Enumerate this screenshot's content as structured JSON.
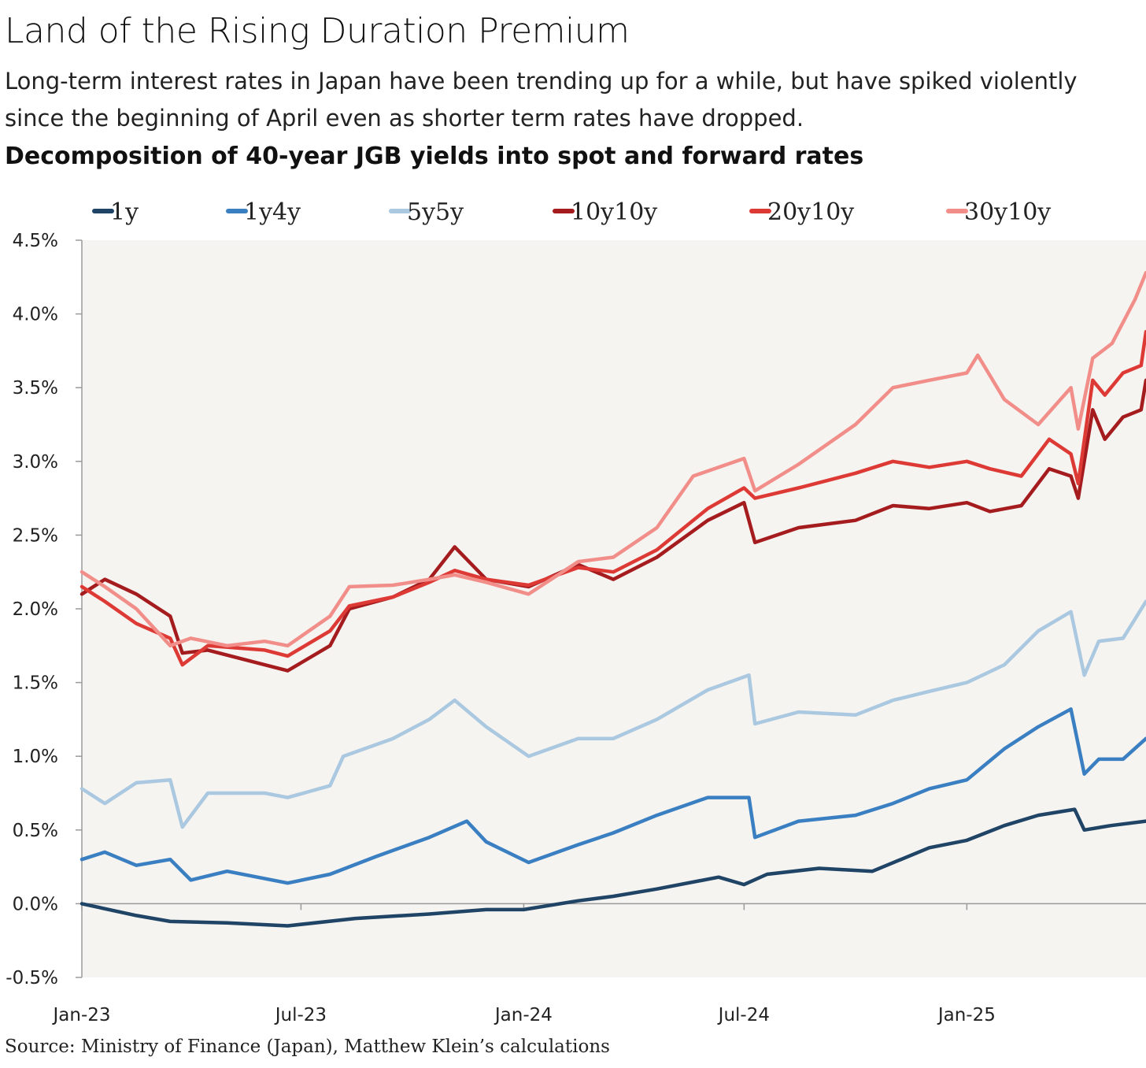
{
  "header": {
    "title": "Land of the Rising Duration Premium",
    "subtitle": "Long-term interest rates in Japan have been trending up for a while, but have spiked violently since the beginning of April even as shorter term rates have dropped.",
    "chart_title": "Decomposition of 40-year JGB yields into spot and forward rates"
  },
  "source": "Source: Ministry of Finance (Japan), Matthew Klein’s calculations",
  "chart_data": {
    "type": "line",
    "title": "Decomposition of 40-year JGB yields into spot and forward rates",
    "xlabel": "",
    "ylabel": "",
    "x_tick_labels": [
      "Jan-23",
      "Jul-23",
      "Jan-24",
      "Jul-24",
      "Jan-25"
    ],
    "x_tick_dates": [
      "2023-01-01",
      "2023-07-01",
      "2024-01-01",
      "2024-07-01",
      "2025-01-01"
    ],
    "xlim": [
      "2023-01-01",
      "2025-05-29"
    ],
    "y_tick_labels": [
      "-0.5%",
      "0.0%",
      "0.5%",
      "1.0%",
      "1.5%",
      "2.0%",
      "2.5%",
      "3.0%",
      "3.5%",
      "4.0%",
      "4.5%"
    ],
    "y_ticks": [
      -0.5,
      0.0,
      0.5,
      1.0,
      1.5,
      2.0,
      2.5,
      3.0,
      3.5,
      4.0,
      4.5
    ],
    "ylim": [
      -0.5,
      4.5
    ],
    "grid": false,
    "legend_position": "top",
    "series": [
      {
        "name": "1y",
        "color": "#1f4466",
        "points": [
          [
            "2023-01-01",
            0.0
          ],
          [
            "2023-02-15",
            -0.08
          ],
          [
            "2023-03-15",
            -0.12
          ],
          [
            "2023-05-01",
            -0.13
          ],
          [
            "2023-06-20",
            -0.15
          ],
          [
            "2023-08-15",
            -0.1
          ],
          [
            "2023-10-15",
            -0.07
          ],
          [
            "2023-12-01",
            -0.04
          ],
          [
            "2024-01-01",
            -0.04
          ],
          [
            "2024-02-15",
            0.02
          ],
          [
            "2024-03-15",
            0.05
          ],
          [
            "2024-04-20",
            0.1
          ],
          [
            "2024-06-10",
            0.18
          ],
          [
            "2024-07-01",
            0.13
          ],
          [
            "2024-07-20",
            0.2
          ],
          [
            "2024-09-01",
            0.24
          ],
          [
            "2024-10-15",
            0.22
          ],
          [
            "2024-12-01",
            0.38
          ],
          [
            "2025-01-01",
            0.43
          ],
          [
            "2025-02-01",
            0.53
          ],
          [
            "2025-03-01",
            0.6
          ],
          [
            "2025-03-31",
            0.64
          ],
          [
            "2025-04-08",
            0.5
          ],
          [
            "2025-04-30",
            0.53
          ],
          [
            "2025-05-29",
            0.56
          ]
        ]
      },
      {
        "name": "1y4y",
        "color": "#3a7fc1",
        "points": [
          [
            "2023-01-01",
            0.3
          ],
          [
            "2023-01-20",
            0.35
          ],
          [
            "2023-02-15",
            0.26
          ],
          [
            "2023-03-15",
            0.3
          ],
          [
            "2023-04-01",
            0.16
          ],
          [
            "2023-05-01",
            0.22
          ],
          [
            "2023-06-20",
            0.14
          ],
          [
            "2023-07-25",
            0.2
          ],
          [
            "2023-09-01",
            0.32
          ],
          [
            "2023-10-15",
            0.45
          ],
          [
            "2023-11-15",
            0.56
          ],
          [
            "2023-12-01",
            0.42
          ],
          [
            "2024-01-05",
            0.28
          ],
          [
            "2024-02-15",
            0.4
          ],
          [
            "2024-03-15",
            0.48
          ],
          [
            "2024-04-20",
            0.6
          ],
          [
            "2024-06-01",
            0.72
          ],
          [
            "2024-07-05",
            0.72
          ],
          [
            "2024-07-10",
            0.45
          ],
          [
            "2024-08-15",
            0.56
          ],
          [
            "2024-10-01",
            0.6
          ],
          [
            "2024-11-01",
            0.68
          ],
          [
            "2024-12-01",
            0.78
          ],
          [
            "2025-01-01",
            0.84
          ],
          [
            "2025-02-01",
            1.05
          ],
          [
            "2025-03-01",
            1.2
          ],
          [
            "2025-03-28",
            1.32
          ],
          [
            "2025-04-08",
            0.88
          ],
          [
            "2025-04-20",
            0.98
          ],
          [
            "2025-05-10",
            0.98
          ],
          [
            "2025-05-29",
            1.12
          ]
        ]
      },
      {
        "name": "5y5y",
        "color": "#aac8e0",
        "points": [
          [
            "2023-01-01",
            0.78
          ],
          [
            "2023-01-20",
            0.68
          ],
          [
            "2023-02-15",
            0.82
          ],
          [
            "2023-03-15",
            0.84
          ],
          [
            "2023-03-25",
            0.52
          ],
          [
            "2023-04-15",
            0.75
          ],
          [
            "2023-06-01",
            0.75
          ],
          [
            "2023-06-20",
            0.72
          ],
          [
            "2023-07-25",
            0.8
          ],
          [
            "2023-08-05",
            1.0
          ],
          [
            "2023-09-15",
            1.12
          ],
          [
            "2023-10-15",
            1.25
          ],
          [
            "2023-11-05",
            1.38
          ],
          [
            "2023-12-01",
            1.2
          ],
          [
            "2024-01-05",
            1.0
          ],
          [
            "2024-02-15",
            1.12
          ],
          [
            "2024-03-15",
            1.12
          ],
          [
            "2024-04-20",
            1.25
          ],
          [
            "2024-06-01",
            1.45
          ],
          [
            "2024-07-05",
            1.55
          ],
          [
            "2024-07-10",
            1.22
          ],
          [
            "2024-08-15",
            1.3
          ],
          [
            "2024-10-01",
            1.28
          ],
          [
            "2024-11-01",
            1.38
          ],
          [
            "2024-12-01",
            1.44
          ],
          [
            "2025-01-01",
            1.5
          ],
          [
            "2025-02-01",
            1.62
          ],
          [
            "2025-03-01",
            1.85
          ],
          [
            "2025-03-28",
            1.98
          ],
          [
            "2025-04-08",
            1.55
          ],
          [
            "2025-04-20",
            1.78
          ],
          [
            "2025-05-10",
            1.8
          ],
          [
            "2025-05-29",
            2.05
          ]
        ]
      },
      {
        "name": "10y10y",
        "color": "#a51c1f",
        "points": [
          [
            "2023-01-01",
            2.1
          ],
          [
            "2023-01-20",
            2.2
          ],
          [
            "2023-02-15",
            2.1
          ],
          [
            "2023-03-15",
            1.95
          ],
          [
            "2023-03-25",
            1.7
          ],
          [
            "2023-04-15",
            1.72
          ],
          [
            "2023-06-01",
            1.62
          ],
          [
            "2023-06-20",
            1.58
          ],
          [
            "2023-07-25",
            1.75
          ],
          [
            "2023-08-10",
            2.0
          ],
          [
            "2023-09-15",
            2.08
          ],
          [
            "2023-10-15",
            2.2
          ],
          [
            "2023-11-05",
            2.42
          ],
          [
            "2023-12-01",
            2.2
          ],
          [
            "2024-01-05",
            2.15
          ],
          [
            "2024-02-15",
            2.3
          ],
          [
            "2024-03-15",
            2.2
          ],
          [
            "2024-04-20",
            2.35
          ],
          [
            "2024-06-01",
            2.6
          ],
          [
            "2024-07-01",
            2.72
          ],
          [
            "2024-07-10",
            2.45
          ],
          [
            "2024-08-15",
            2.55
          ],
          [
            "2024-10-01",
            2.6
          ],
          [
            "2024-11-01",
            2.7
          ],
          [
            "2024-12-01",
            2.68
          ],
          [
            "2025-01-01",
            2.72
          ],
          [
            "2025-01-20",
            2.66
          ],
          [
            "2025-02-15",
            2.7
          ],
          [
            "2025-03-10",
            2.95
          ],
          [
            "2025-03-28",
            2.9
          ],
          [
            "2025-04-03",
            2.75
          ],
          [
            "2025-04-15",
            3.35
          ],
          [
            "2025-04-25",
            3.15
          ],
          [
            "2025-05-10",
            3.3
          ],
          [
            "2025-05-25",
            3.35
          ],
          [
            "2025-05-29",
            3.55
          ]
        ]
      },
      {
        "name": "20y10y",
        "color": "#de3a35",
        "points": [
          [
            "2023-01-01",
            2.15
          ],
          [
            "2023-01-20",
            2.05
          ],
          [
            "2023-02-15",
            1.9
          ],
          [
            "2023-03-15",
            1.8
          ],
          [
            "2023-03-25",
            1.62
          ],
          [
            "2023-04-15",
            1.75
          ],
          [
            "2023-06-01",
            1.72
          ],
          [
            "2023-06-20",
            1.68
          ],
          [
            "2023-07-25",
            1.85
          ],
          [
            "2023-08-10",
            2.02
          ],
          [
            "2023-09-15",
            2.08
          ],
          [
            "2023-10-15",
            2.18
          ],
          [
            "2023-11-05",
            2.26
          ],
          [
            "2023-12-01",
            2.2
          ],
          [
            "2024-01-05",
            2.16
          ],
          [
            "2024-02-15",
            2.28
          ],
          [
            "2024-03-15",
            2.25
          ],
          [
            "2024-04-20",
            2.4
          ],
          [
            "2024-06-01",
            2.68
          ],
          [
            "2024-07-01",
            2.82
          ],
          [
            "2024-07-10",
            2.75
          ],
          [
            "2024-08-15",
            2.82
          ],
          [
            "2024-10-01",
            2.92
          ],
          [
            "2024-11-01",
            3.0
          ],
          [
            "2024-12-01",
            2.96
          ],
          [
            "2025-01-01",
            3.0
          ],
          [
            "2025-01-20",
            2.95
          ],
          [
            "2025-02-15",
            2.9
          ],
          [
            "2025-03-10",
            3.15
          ],
          [
            "2025-03-28",
            3.05
          ],
          [
            "2025-04-03",
            2.85
          ],
          [
            "2025-04-15",
            3.55
          ],
          [
            "2025-04-25",
            3.45
          ],
          [
            "2025-05-10",
            3.6
          ],
          [
            "2025-05-25",
            3.65
          ],
          [
            "2025-05-29",
            3.88
          ]
        ]
      },
      {
        "name": "30y10y",
        "color": "#f28e89",
        "points": [
          [
            "2023-01-01",
            2.25
          ],
          [
            "2023-01-20",
            2.15
          ],
          [
            "2023-02-15",
            2.0
          ],
          [
            "2023-03-15",
            1.75
          ],
          [
            "2023-04-01",
            1.8
          ],
          [
            "2023-05-01",
            1.75
          ],
          [
            "2023-06-01",
            1.78
          ],
          [
            "2023-06-20",
            1.75
          ],
          [
            "2023-07-25",
            1.95
          ],
          [
            "2023-08-10",
            2.15
          ],
          [
            "2023-09-15",
            2.16
          ],
          [
            "2023-10-15",
            2.2
          ],
          [
            "2023-11-05",
            2.23
          ],
          [
            "2023-12-01",
            2.18
          ],
          [
            "2024-01-05",
            2.1
          ],
          [
            "2024-02-15",
            2.32
          ],
          [
            "2024-03-15",
            2.35
          ],
          [
            "2024-04-20",
            2.55
          ],
          [
            "2024-05-20",
            2.9
          ],
          [
            "2024-07-01",
            3.02
          ],
          [
            "2024-07-10",
            2.8
          ],
          [
            "2024-08-15",
            2.98
          ],
          [
            "2024-10-01",
            3.25
          ],
          [
            "2024-11-01",
            3.5
          ],
          [
            "2024-12-01",
            3.55
          ],
          [
            "2025-01-01",
            3.6
          ],
          [
            "2025-01-10",
            3.72
          ],
          [
            "2025-02-01",
            3.42
          ],
          [
            "2025-03-01",
            3.25
          ],
          [
            "2025-03-28",
            3.5
          ],
          [
            "2025-04-03",
            3.22
          ],
          [
            "2025-04-15",
            3.7
          ],
          [
            "2025-05-01",
            3.8
          ],
          [
            "2025-05-20",
            4.1
          ],
          [
            "2025-05-29",
            4.28
          ]
        ]
      }
    ]
  }
}
